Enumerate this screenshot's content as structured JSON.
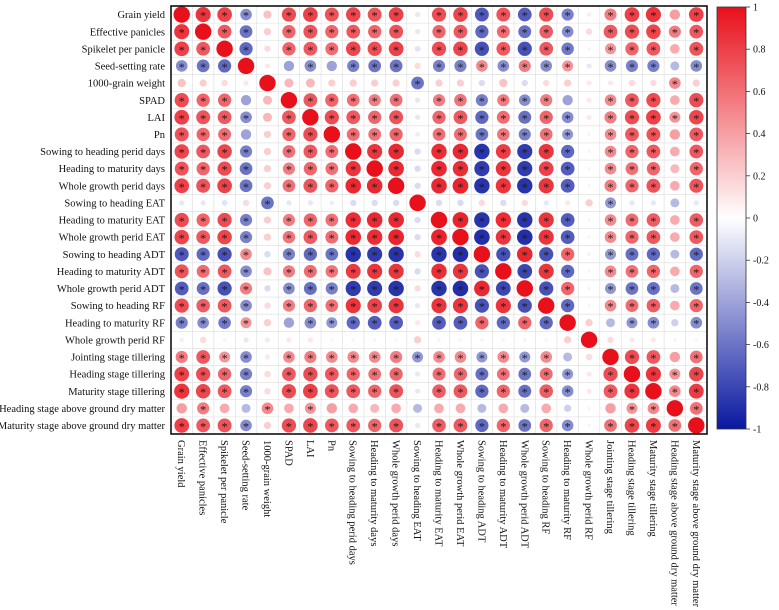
{
  "chart_data": {
    "type": "heatmap",
    "title": "",
    "subtype": "correlation-circle-matrix",
    "labels": [
      "Grain yield",
      "Effective panicles",
      "Spikelet per panicle",
      "Seed-setting rate",
      "1000-grain weight",
      "SPAD",
      "LAI",
      "Pn",
      "Sowing to heading perid days",
      "Heading to maturity days",
      "Whole growth perid days",
      "Sowing to heading EAT",
      "Heading to maturity EAT",
      "Whole growth perid EAT",
      "Sowing to heading ADT",
      "Heading to maturity ADT",
      "Whole growth perid ADT",
      "Sowing to heading RF",
      "Heading to maturity RF",
      "Whole growth perid RF",
      "Jointing stage tillering",
      "Heading stage tillering",
      "Maturity stage tillering",
      "Heading stage above ground dry matter",
      "Maturity stage above ground dry matter"
    ],
    "colorbar": {
      "range": [
        -1,
        1
      ],
      "ticks": [
        "1",
        "0.8",
        "0.6",
        "0.4",
        "0.2",
        "0",
        "-0.2",
        "-0.4",
        "-0.6",
        "-0.8",
        "-1"
      ],
      "colors": {
        "positive": "#e8101a",
        "neutral": "#ffffff",
        "negative": "#0a18a0"
      }
    },
    "significance_marker": "*",
    "significance_threshold": 0.45,
    "matrix": [
      [
        1,
        0.85,
        0.8,
        -0.5,
        0.25,
        0.75,
        0.8,
        0.72,
        0.78,
        0.72,
        0.8,
        -0.1,
        0.75,
        0.78,
        -0.72,
        0.72,
        -0.7,
        0.75,
        -0.55,
        0.08,
        0.55,
        0.8,
        0.85,
        0.4,
        0.8
      ],
      [
        0.85,
        1,
        0.7,
        -0.6,
        0.2,
        0.65,
        0.72,
        0.65,
        0.7,
        0.65,
        0.72,
        -0.1,
        0.65,
        0.7,
        -0.65,
        0.62,
        -0.62,
        0.68,
        -0.5,
        0.15,
        0.7,
        0.75,
        0.78,
        0.55,
        0.7
      ],
      [
        0.8,
        0.7,
        1,
        -0.65,
        0.15,
        0.65,
        0.7,
        0.62,
        0.78,
        0.75,
        0.8,
        -0.12,
        0.75,
        0.78,
        -0.75,
        0.7,
        -0.75,
        0.7,
        -0.58,
        0.05,
        0.45,
        0.65,
        0.7,
        0.35,
        0.72
      ],
      [
        -0.5,
        -0.6,
        -0.65,
        1,
        0.1,
        -0.4,
        -0.5,
        -0.4,
        -0.55,
        -0.6,
        -0.6,
        0.15,
        -0.55,
        -0.55,
        0.5,
        -0.5,
        0.55,
        -0.5,
        0.45,
        -0.1,
        -0.5,
        -0.55,
        -0.55,
        -0.3,
        -0.5
      ],
      [
        0.25,
        0.2,
        0.15,
        0.1,
        1,
        0.3,
        0.3,
        0.2,
        0.2,
        0.2,
        0.2,
        -0.6,
        0.2,
        0.2,
        -0.15,
        0.25,
        -0.15,
        0.15,
        0.2,
        0.1,
        0.1,
        0.15,
        0.15,
        0.5,
        0.2
      ],
      [
        0.75,
        0.65,
        0.65,
        -0.4,
        0.3,
        1,
        0.7,
        0.65,
        0.6,
        0.55,
        0.6,
        -0.1,
        0.55,
        0.58,
        -0.55,
        0.55,
        -0.5,
        0.55,
        -0.4,
        0.1,
        0.5,
        0.7,
        0.75,
        0.35,
        0.75
      ],
      [
        0.8,
        0.72,
        0.7,
        -0.5,
        0.3,
        0.7,
        1,
        0.75,
        0.7,
        0.65,
        0.72,
        -0.1,
        0.65,
        0.7,
        -0.65,
        0.62,
        -0.62,
        0.65,
        -0.5,
        0.1,
        0.55,
        0.75,
        0.8,
        0.45,
        0.78
      ],
      [
        0.72,
        0.65,
        0.62,
        -0.4,
        0.2,
        0.65,
        0.75,
        1,
        0.62,
        0.6,
        0.65,
        -0.08,
        0.6,
        0.62,
        -0.6,
        0.58,
        -0.55,
        0.6,
        -0.45,
        0.05,
        0.5,
        0.7,
        0.72,
        0.4,
        0.7
      ],
      [
        0.78,
        0.7,
        0.78,
        -0.55,
        0.2,
        0.6,
        0.7,
        0.62,
        1,
        0.85,
        0.9,
        -0.15,
        0.88,
        0.9,
        -0.88,
        0.82,
        -0.85,
        0.85,
        -0.65,
        0.05,
        0.5,
        0.65,
        0.7,
        0.35,
        0.7
      ],
      [
        0.72,
        0.65,
        0.75,
        -0.6,
        0.2,
        0.55,
        0.65,
        0.6,
        0.85,
        1,
        0.9,
        -0.15,
        0.9,
        0.88,
        -0.85,
        0.85,
        -0.85,
        0.8,
        -0.7,
        0.05,
        0.5,
        0.6,
        0.65,
        0.3,
        0.65
      ],
      [
        0.8,
        0.72,
        0.8,
        -0.6,
        0.2,
        0.6,
        0.72,
        0.65,
        0.9,
        0.9,
        1,
        -0.15,
        0.9,
        0.92,
        -0.88,
        0.85,
        -0.88,
        0.85,
        -0.7,
        0.05,
        0.55,
        0.65,
        0.72,
        0.35,
        0.72
      ],
      [
        -0.1,
        -0.1,
        -0.12,
        0.15,
        -0.6,
        -0.1,
        -0.1,
        -0.08,
        -0.15,
        -0.15,
        -0.15,
        1,
        -0.15,
        -0.15,
        0.15,
        -0.15,
        0.15,
        -0.1,
        0.1,
        0.2,
        -0.45,
        -0.1,
        -0.1,
        -0.3,
        -0.1
      ],
      [
        0.75,
        0.65,
        0.75,
        -0.55,
        0.2,
        0.55,
        0.65,
        0.6,
        0.88,
        0.9,
        0.9,
        -0.15,
        1,
        0.92,
        -0.88,
        0.88,
        -0.88,
        0.85,
        -0.7,
        0.05,
        0.5,
        0.62,
        0.68,
        0.35,
        0.68
      ],
      [
        0.78,
        0.7,
        0.78,
        -0.55,
        0.2,
        0.58,
        0.7,
        0.62,
        0.9,
        0.88,
        0.92,
        -0.15,
        0.92,
        1,
        -0.9,
        0.85,
        -0.9,
        0.85,
        -0.7,
        0.05,
        0.5,
        0.65,
        0.7,
        0.35,
        0.7
      ],
      [
        -0.72,
        -0.65,
        -0.75,
        0.5,
        -0.15,
        -0.55,
        -0.65,
        -0.6,
        -0.88,
        -0.85,
        -0.88,
        0.15,
        -0.88,
        -0.9,
        1,
        -0.75,
        0.9,
        -0.75,
        0.65,
        -0.05,
        -0.45,
        -0.62,
        -0.65,
        -0.3,
        -0.65
      ],
      [
        0.72,
        0.62,
        0.7,
        -0.5,
        0.25,
        0.55,
        0.62,
        0.58,
        0.82,
        0.85,
        0.85,
        -0.15,
        0.88,
        0.85,
        -0.75,
        1,
        -0.8,
        0.85,
        -0.65,
        0.05,
        0.5,
        0.6,
        0.65,
        0.35,
        0.65
      ],
      [
        -0.7,
        -0.62,
        -0.75,
        0.55,
        -0.15,
        -0.5,
        -0.62,
        -0.55,
        -0.85,
        -0.85,
        -0.88,
        0.15,
        -0.88,
        -0.9,
        0.9,
        -0.8,
        1,
        -0.75,
        0.65,
        -0.05,
        -0.45,
        -0.6,
        -0.62,
        -0.3,
        -0.6
      ],
      [
        0.75,
        0.68,
        0.7,
        -0.5,
        0.15,
        0.55,
        0.65,
        0.6,
        0.85,
        0.8,
        0.85,
        -0.1,
        0.85,
        0.85,
        -0.75,
        0.85,
        -0.75,
        1,
        -0.65,
        0.05,
        0.5,
        0.62,
        0.68,
        0.35,
        0.65
      ],
      [
        -0.55,
        -0.5,
        -0.58,
        0.45,
        0.2,
        -0.4,
        -0.5,
        -0.45,
        -0.65,
        -0.7,
        -0.7,
        0.1,
        -0.7,
        -0.7,
        0.65,
        -0.65,
        0.65,
        -0.65,
        1,
        0.2,
        -0.3,
        -0.45,
        -0.5,
        -0.2,
        -0.5
      ],
      [
        0.08,
        0.15,
        0.05,
        -0.1,
        0.1,
        0.1,
        0.1,
        0.05,
        0.05,
        0.05,
        0.05,
        0.2,
        0.05,
        0.05,
        -0.05,
        0.05,
        -0.05,
        0.05,
        0.2,
        1,
        0.15,
        0.1,
        0.1,
        0.05,
        0.05
      ],
      [
        0.55,
        0.7,
        0.45,
        -0.5,
        0.1,
        0.5,
        0.55,
        0.5,
        0.5,
        0.5,
        0.55,
        -0.45,
        0.5,
        0.5,
        -0.45,
        0.5,
        -0.45,
        0.5,
        -0.3,
        0.15,
        1,
        0.75,
        0.7,
        0.4,
        0.6
      ],
      [
        0.8,
        0.75,
        0.65,
        -0.55,
        0.15,
        0.7,
        0.75,
        0.7,
        0.65,
        0.6,
        0.65,
        -0.1,
        0.62,
        0.65,
        -0.62,
        0.6,
        -0.6,
        0.62,
        -0.45,
        0.1,
        0.75,
        1,
        0.85,
        0.45,
        0.78
      ],
      [
        0.85,
        0.78,
        0.7,
        -0.55,
        0.15,
        0.75,
        0.8,
        0.72,
        0.7,
        0.65,
        0.72,
        -0.1,
        0.68,
        0.7,
        -0.65,
        0.65,
        -0.62,
        0.68,
        -0.5,
        0.1,
        0.7,
        0.85,
        1,
        0.5,
        0.82
      ],
      [
        0.4,
        0.55,
        0.35,
        -0.3,
        0.5,
        0.35,
        0.45,
        0.4,
        0.35,
        0.3,
        0.35,
        -0.3,
        0.35,
        0.35,
        -0.3,
        0.35,
        -0.3,
        0.35,
        -0.2,
        0.05,
        0.4,
        0.45,
        0.5,
        1,
        0.6
      ],
      [
        0.8,
        0.7,
        0.72,
        -0.5,
        0.2,
        0.75,
        0.78,
        0.7,
        0.7,
        0.65,
        0.72,
        -0.1,
        0.68,
        0.7,
        -0.65,
        0.65,
        -0.6,
        0.65,
        -0.5,
        0.05,
        0.6,
        0.78,
        0.82,
        0.6,
        1
      ]
    ]
  }
}
